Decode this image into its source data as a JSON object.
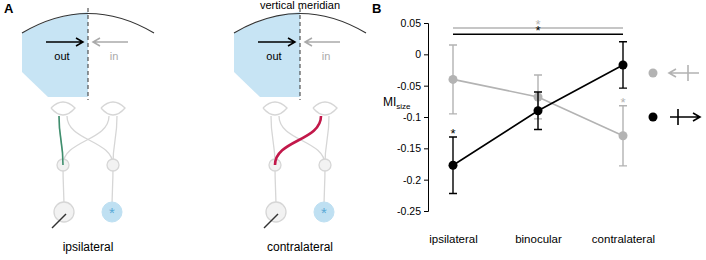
{
  "diagram": {
    "label": "A",
    "meridian_label": "vertical meridian",
    "panels": [
      {
        "title": "ipsilateral",
        "out": "out",
        "in": "in",
        "marker": "*",
        "color": "#3f8f6e"
      },
      {
        "title": "contralateral",
        "out": "out",
        "in": "in",
        "marker": "*",
        "color": "#c2184a"
      }
    ]
  },
  "chart_data": {
    "type": "line",
    "panel_label": "B",
    "y_label": "MI",
    "y_label_sub": "size",
    "categories": [
      "ipsilateral",
      "binocular",
      "contralateral"
    ],
    "ylim": [
      -0.25,
      0.05
    ],
    "yticks": [
      0.05,
      0,
      -0.05,
      -0.1,
      -0.15,
      -0.2,
      -0.25
    ],
    "legend": "right",
    "series": [
      {
        "color": "#b3b3b3",
        "marker": "circle",
        "values": [
          -0.04,
          -0.068,
          -0.13
        ],
        "errors": [
          0.055,
          0.035,
          0.048
        ],
        "stars": [
          null,
          null,
          "*"
        ]
      },
      {
        "color": "#000000",
        "marker": "circle",
        "values": [
          -0.177,
          -0.09,
          -0.017
        ],
        "errors": [
          0.045,
          0.03,
          0.037
        ],
        "stars": [
          "*",
          null,
          null
        ]
      }
    ],
    "brackets": [
      {
        "color": "#b3b3b3",
        "y": 0.042,
        "from": "ipsilateral",
        "to": "contralateral",
        "label": "*"
      },
      {
        "color": "#000000",
        "y": 0.032,
        "from": "ipsilateral",
        "to": "contralateral",
        "label": "*"
      }
    ]
  }
}
